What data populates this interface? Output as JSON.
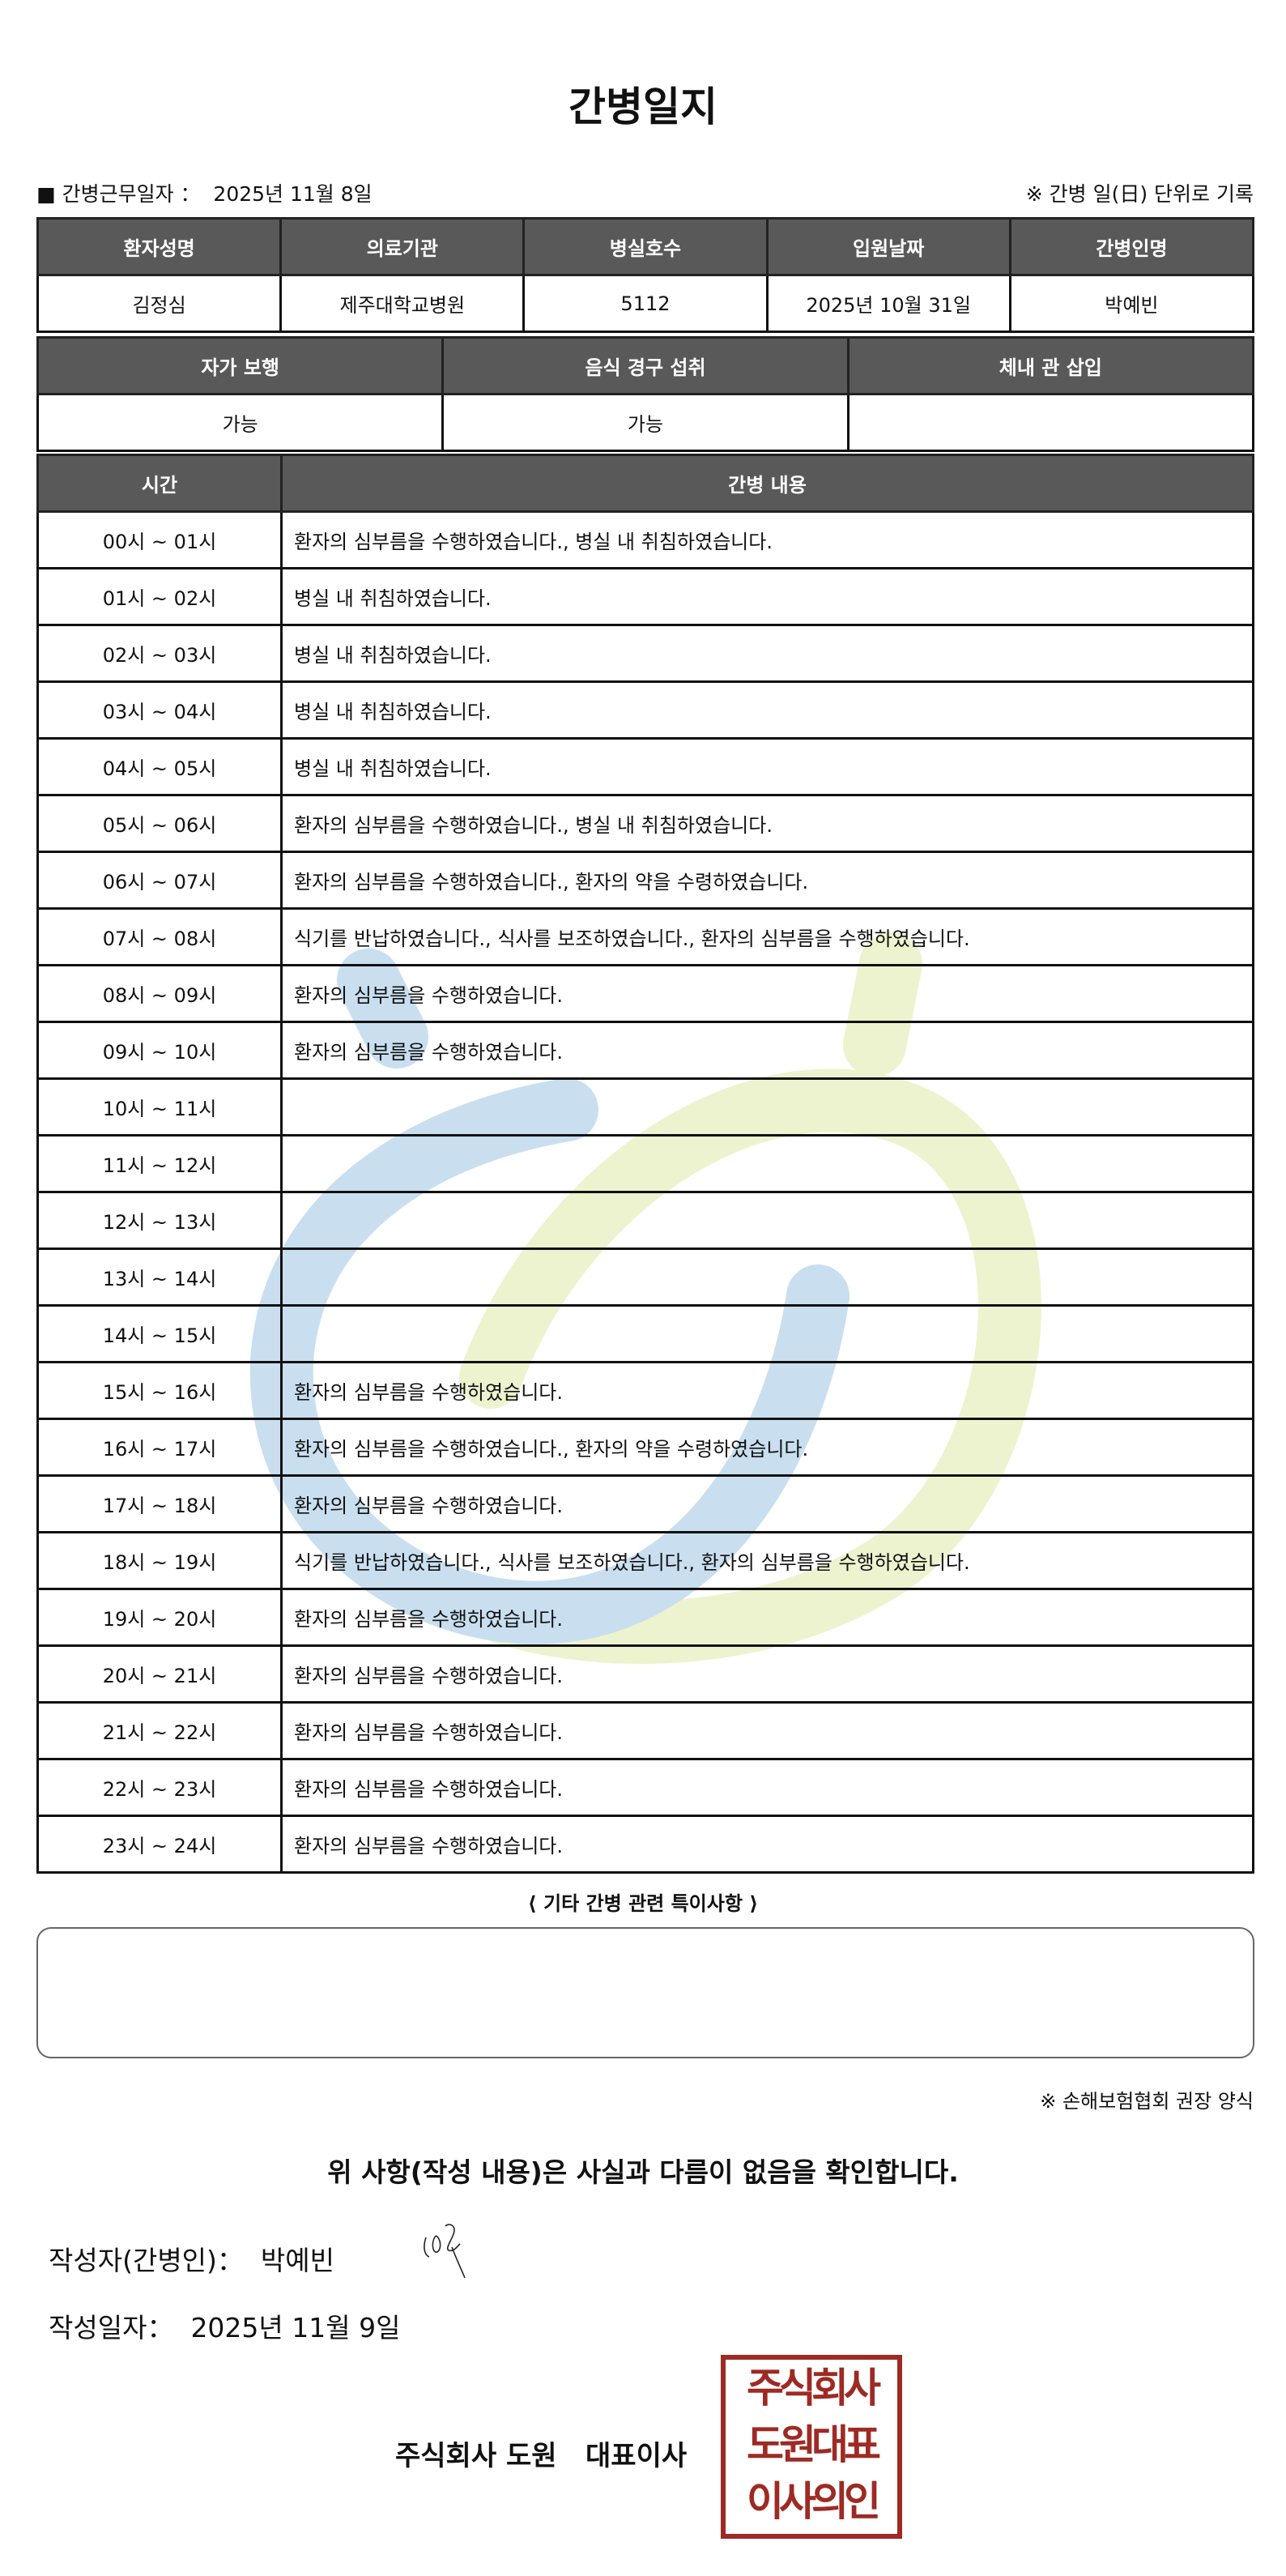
{
  "title": "간병일지",
  "info": {
    "work_date_label": "■ 간병근무일자 ：",
    "work_date": "2025년 11월 8일",
    "note": "※ 간병 일(日) 단위로 기록"
  },
  "patient_table": {
    "headers": [
      "환자성명",
      "의료기관",
      "병실호수",
      "입원날짜",
      "간병인명"
    ],
    "values": [
      "김정심",
      "제주대학교병원",
      "5112",
      "2025년 10월 31일",
      "박예빈"
    ]
  },
  "status_table": {
    "headers": [
      "자가 보행",
      "음식 경구 섭취",
      "체내 관 삽입"
    ],
    "values": [
      "가능",
      "가능",
      ""
    ]
  },
  "log_table": {
    "headers": [
      "시간",
      "간병 내용"
    ],
    "rows": [
      {
        "time": "00시 ~ 01시",
        "content": "환자의 심부름을 수행하였습니다., 병실 내 취침하였습니다."
      },
      {
        "time": "01시 ~ 02시",
        "content": "병실 내 취침하였습니다."
      },
      {
        "time": "02시 ~ 03시",
        "content": "병실 내 취침하였습니다."
      },
      {
        "time": "03시 ~ 04시",
        "content": "병실 내 취침하였습니다."
      },
      {
        "time": "04시 ~ 05시",
        "content": "병실 내 취침하였습니다."
      },
      {
        "time": "05시 ~ 06시",
        "content": "환자의 심부름을 수행하였습니다., 병실 내 취침하였습니다."
      },
      {
        "time": "06시 ~ 07시",
        "content": "환자의 심부름을 수행하였습니다., 환자의 약을 수령하였습니다."
      },
      {
        "time": "07시 ~ 08시",
        "content": "식기를 반납하였습니다., 식사를 보조하였습니다., 환자의 심부름을 수행하였습니다."
      },
      {
        "time": "08시 ~ 09시",
        "content": "환자의 심부름을 수행하였습니다."
      },
      {
        "time": "09시 ~ 10시",
        "content": "환자의 심부름을 수행하였습니다."
      },
      {
        "time": "10시 ~ 11시",
        "content": ""
      },
      {
        "time": "11시 ~ 12시",
        "content": ""
      },
      {
        "time": "12시 ~ 13시",
        "content": ""
      },
      {
        "time": "13시 ~ 14시",
        "content": ""
      },
      {
        "time": "14시 ~ 15시",
        "content": ""
      },
      {
        "time": "15시 ~ 16시",
        "content": "환자의 심부름을 수행하였습니다."
      },
      {
        "time": "16시 ~ 17시",
        "content": "환자의 심부름을 수행하였습니다., 환자의 약을 수령하였습니다."
      },
      {
        "time": "17시 ~ 18시",
        "content": "환자의 심부름을 수행하였습니다."
      },
      {
        "time": "18시 ~ 19시",
        "content": "식기를 반납하였습니다., 식사를 보조하였습니다., 환자의 심부름을 수행하였습니다."
      },
      {
        "time": "19시 ~ 20시",
        "content": "환자의 심부름을 수행하였습니다."
      },
      {
        "time": "20시 ~ 21시",
        "content": "환자의 심부름을 수행하였습니다."
      },
      {
        "time": "21시 ~ 22시",
        "content": "환자의 심부름을 수행하였습니다."
      },
      {
        "time": "22시 ~ 23시",
        "content": "환자의 심부름을 수행하였습니다."
      },
      {
        "time": "23시 ~ 24시",
        "content": "환자의 심부름을 수행하였습니다."
      }
    ]
  },
  "notes": {
    "label": "⟨ 기타 간병 관련 특이사항 ⟩",
    "value": ""
  },
  "recommend": "※ 손해보험협회 권장 양식",
  "confirm": "위 사항(작성 내용)은 사실과 다름이 없음을 확인합니다.",
  "writer": {
    "label": "작성자(간병인)：",
    "name": "박예빈"
  },
  "write_date": {
    "label": "작성일자：",
    "value": "2025년 11월 9일"
  },
  "company": "주식회사 도원   대표이사",
  "stamp": {
    "lines": [
      "주식회사",
      "도원대표",
      "이사의인"
    ],
    "color": "#9e2a24"
  },
  "colors": {
    "header_bg": "#595959",
    "watermark_blue": "#c9dff0",
    "watermark_green": "#eef3cf"
  }
}
